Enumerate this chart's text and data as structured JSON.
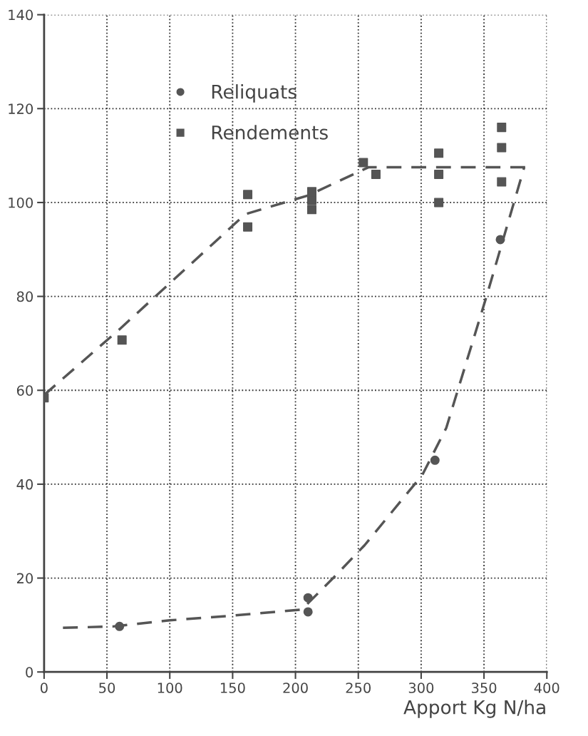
{
  "chart_data": {
    "type": "scatter",
    "xlabel": "Apport Kg N/ha",
    "xlim": [
      0,
      400
    ],
    "ylim": [
      0,
      140
    ],
    "xticks": [
      0,
      50,
      100,
      150,
      200,
      250,
      300,
      350,
      400
    ],
    "yticks": [
      0,
      20,
      40,
      60,
      80,
      100,
      120,
      140
    ],
    "grid": true,
    "legend": "top left",
    "series": [
      {
        "name": "Reliquats",
        "marker": "circle",
        "color": "#555555",
        "x": [
          60,
          210,
          210,
          311,
          363
        ],
        "values": [
          9.7,
          15.8,
          12.8,
          45.1,
          92.1
        ]
      },
      {
        "name": "Rendements",
        "marker": "square",
        "color": "#555555",
        "x": [
          0,
          62,
          162,
          162,
          213,
          213,
          213,
          254,
          264,
          314,
          314,
          314,
          364,
          364,
          364
        ],
        "values": [
          58.4,
          70.7,
          101.7,
          94.8,
          102.3,
          100.5,
          98.5,
          108.5,
          106,
          110.5,
          106,
          100,
          116,
          111.7,
          104.4
        ]
      },
      {
        "type": "line",
        "line_style": "dashed",
        "marker": "none",
        "color": "#555555",
        "x": [
          0,
          60,
          160,
          210,
          258,
          385
        ],
        "values": [
          59,
          73,
          97.5,
          101.5,
          107.5,
          107.5
        ]
      },
      {
        "type": "line",
        "line_style": "dashed",
        "marker": "none",
        "color": "#555555",
        "x": [
          15,
          55,
          100,
          150,
          205,
          230,
          255,
          301,
          320,
          352,
          382
        ],
        "values": [
          9.4,
          9.7,
          11,
          12,
          13.3,
          20,
          27,
          42,
          52,
          80,
          107.5
        ]
      }
    ]
  }
}
